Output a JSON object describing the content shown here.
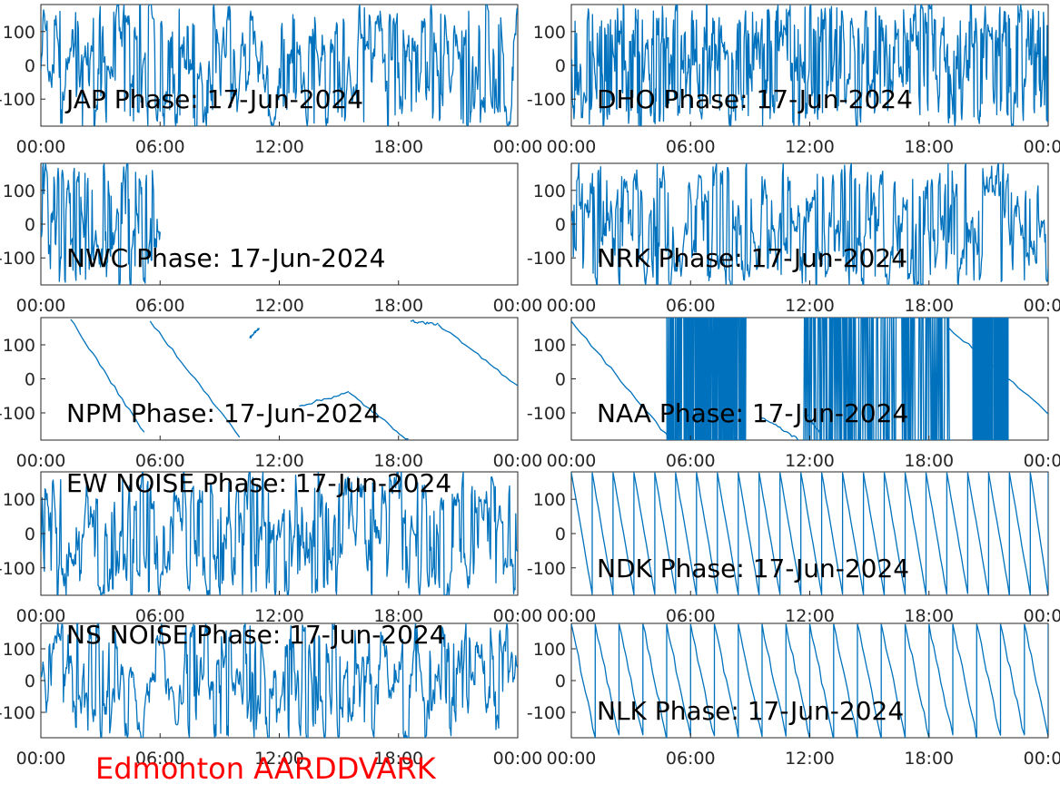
{
  "footer": {
    "station": "Edmonton AARDDVARK",
    "color": "#ff0000"
  },
  "line_color": "#0072bd",
  "chart_data": [
    {
      "type": "line",
      "title": "JAP Phase: 17-Jun-2024",
      "pattern": "noise",
      "density": 0.9,
      "yticks": [
        100,
        0,
        -100
      ],
      "xticks": [
        "00:00",
        "06:00",
        "12:00",
        "18:00",
        "00:00"
      ],
      "ylim": [
        -180,
        180
      ],
      "xlim_hours": [
        0,
        24
      ]
    },
    {
      "type": "line",
      "title": "DHO Phase: 17-Jun-2024",
      "pattern": "dense-wrap",
      "density": 1.0,
      "yticks": [
        100,
        0,
        -100
      ],
      "xticks": [
        "00:00",
        "06:00",
        "12:00",
        "18:00",
        "00:00"
      ],
      "ylim": [
        -180,
        180
      ],
      "xlim_hours": [
        0,
        24
      ]
    },
    {
      "type": "line",
      "title": "NWC Phase: 17-Jun-2024",
      "pattern": "drift",
      "segments": [
        [
          0,
          6,
          "noise"
        ],
        [
          6,
          24,
          "sawtooth",
          [
            [
              7.5,
              175,
              9.2,
              -140
            ],
            [
              9.5,
              180,
              11,
              -100
            ],
            [
              11.6,
              170,
              15.3,
              -150
            ],
            [
              15.4,
              175,
              19,
              -130
            ],
            [
              19.8,
              180,
              20,
              -180
            ],
            [
              21.5,
              150,
              24,
              -140
            ]
          ]
        ]
      ],
      "yticks": [
        100,
        0,
        -100
      ],
      "xticks": [
        "00:00",
        "06:00",
        "12:00",
        "18:00",
        "00:00"
      ],
      "ylim": [
        -180,
        180
      ],
      "xlim_hours": [
        0,
        24
      ]
    },
    {
      "type": "line",
      "title": "NRK Phase: 17-Jun-2024",
      "pattern": "noise",
      "density": 0.75,
      "yticks": [
        100,
        0,
        -100
      ],
      "xticks": [
        "00:00",
        "06:00",
        "12:00",
        "18:00",
        "00:00"
      ],
      "ylim": [
        -180,
        180
      ],
      "xlim_hours": [
        0,
        24
      ]
    },
    {
      "type": "line",
      "title": "NPM Phase: 17-Jun-2024",
      "pattern": "drift",
      "segments": [
        [
          1.5,
          175,
          5.2,
          -160
        ],
        [
          5.5,
          170,
          10,
          -170
        ],
        [
          10.5,
          120,
          11,
          150
        ],
        [
          13,
          -80,
          15.5,
          -40
        ],
        [
          15.5,
          -40,
          18.5,
          -180
        ],
        [
          18.6,
          170,
          20,
          160
        ],
        [
          20,
          160,
          24,
          -20
        ]
      ],
      "yticks": [
        100,
        0,
        -100
      ],
      "xticks": [
        "00:00",
        "06:00",
        "12:00",
        "18:00",
        "00:00"
      ],
      "ylim": [
        -180,
        180
      ],
      "xlim_hours": [
        0,
        24
      ]
    },
    {
      "type": "line",
      "title": "NAA Phase: 17-Jun-2024",
      "pattern": "drift",
      "segments": [
        [
          0,
          170,
          5,
          -180
        ],
        [
          9.5,
          -110,
          11.5,
          -180
        ],
        [
          11.8,
          -100,
          12.5,
          -160
        ],
        [
          19,
          150,
          24,
          -100
        ]
      ],
      "noise_bands": [
        [
          4.8,
          8.8
        ],
        [
          11.7,
          19.2
        ],
        [
          20.2,
          22
        ]
      ],
      "yticks": [
        100,
        0,
        -100
      ],
      "xticks": [
        "00:00",
        "06:00",
        "12:00",
        "18:00",
        "00:00"
      ],
      "ylim": [
        -180,
        180
      ],
      "xlim_hours": [
        0,
        24
      ]
    },
    {
      "type": "line",
      "title": "EW NOISE Phase: 17-Jun-2024",
      "pattern": "noise",
      "density": 0.8,
      "yticks": [
        100,
        0,
        -100
      ],
      "xticks": [
        "00:00",
        "06:00",
        "12:00",
        "18:00",
        "00:00"
      ],
      "ylim": [
        -180,
        180
      ],
      "xlim_hours": [
        0,
        24
      ]
    },
    {
      "type": "line",
      "title": "NDK Phase: 17-Jun-2024",
      "pattern": "sawtooth",
      "period_hours": 1.05,
      "yticks": [
        100,
        0,
        -100
      ],
      "xticks": [
        "00:00",
        "06:00",
        "12:00",
        "18:00",
        "00:00"
      ],
      "ylim": [
        -180,
        180
      ],
      "xlim_hours": [
        0,
        24
      ]
    },
    {
      "type": "line",
      "title": "NS NOISE Phase: 17-Jun-2024",
      "pattern": "noise",
      "density": 0.7,
      "yticks": [
        100,
        0,
        -100
      ],
      "xticks": [
        "00:00",
        "06:00",
        "12:00",
        "18:00",
        "00:00"
      ],
      "ylim": [
        -180,
        180
      ],
      "xlim_hours": [
        0,
        24
      ]
    },
    {
      "type": "line",
      "title": "NLK Phase: 17-Jun-2024",
      "pattern": "sawtooth-thick",
      "period_hours": 1.2,
      "yticks": [
        100,
        0,
        -100
      ],
      "xticks": [
        "00:00",
        "06:00",
        "12:00",
        "18:00",
        "00:00"
      ],
      "ylim": [
        -180,
        180
      ],
      "xlim_hours": [
        0,
        24
      ]
    }
  ]
}
